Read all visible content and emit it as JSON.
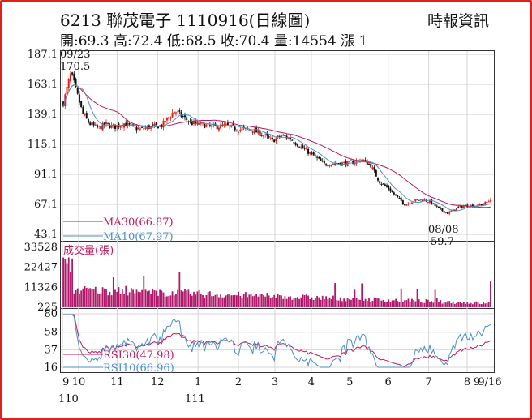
{
  "header": {
    "title": "6213  聯茂電子 1110916(日線圖)",
    "source": "時報資訊",
    "ohlc": "開:69.3 高:72.4 低:68.5 收:70.4 量:14554 漲 1"
  },
  "colors": {
    "up": "#e0201b",
    "down": "#111111",
    "ma30": "#c2185b",
    "ma10": "#4a90c2",
    "volume": "#b0186a",
    "frame": "#e0201b"
  },
  "chart_data": [
    {
      "type": "candlestick",
      "yticks": [
        "187.1",
        "163.1",
        "139.1",
        "115.1",
        "91.1",
        "67.1",
        "43.1"
      ],
      "ylim": [
        43.1,
        187.1
      ],
      "annotations": [
        {
          "label": "09/23",
          "value": "170.5"
        },
        {
          "label": "08/08",
          "value": "59.7"
        }
      ],
      "legend": [
        {
          "name": "MA30(66.87)",
          "color": "#c2185b"
        },
        {
          "name": "MA10(67.97)",
          "color": "#4a90c2"
        }
      ],
      "series": [
        {
          "name": "MA30",
          "last": 66.87
        },
        {
          "name": "MA10",
          "last": 67.97
        }
      ],
      "months": [
        {
          "label": "9",
          "pos": 0.0
        },
        {
          "label": "10",
          "pos": 0.04
        },
        {
          "label": "11",
          "pos": 0.135
        },
        {
          "label": "12",
          "pos": 0.235
        },
        {
          "label": "1",
          "pos": 0.335
        },
        {
          "label": "2",
          "pos": 0.435
        },
        {
          "label": "3",
          "pos": 0.525
        },
        {
          "label": "4",
          "pos": 0.615
        },
        {
          "label": "5",
          "pos": 0.71
        },
        {
          "label": "6",
          "pos": 0.805
        },
        {
          "label": "7",
          "pos": 0.905
        },
        {
          "label": "8",
          "pos": 1.0
        }
      ],
      "price_anchors": [
        [
          0.0,
          148
        ],
        [
          0.01,
          162
        ],
        [
          0.018,
          172
        ],
        [
          0.03,
          158
        ],
        [
          0.045,
          140
        ],
        [
          0.06,
          132
        ],
        [
          0.08,
          128
        ],
        [
          0.1,
          131
        ],
        [
          0.12,
          129
        ],
        [
          0.14,
          132
        ],
        [
          0.16,
          129
        ],
        [
          0.18,
          127
        ],
        [
          0.2,
          129
        ],
        [
          0.23,
          130
        ],
        [
          0.26,
          142
        ],
        [
          0.28,
          137
        ],
        [
          0.3,
          132
        ],
        [
          0.32,
          131
        ],
        [
          0.35,
          129
        ],
        [
          0.38,
          130
        ],
        [
          0.41,
          127
        ],
        [
          0.44,
          127
        ],
        [
          0.47,
          122
        ],
        [
          0.49,
          118
        ],
        [
          0.51,
          122
        ],
        [
          0.53,
          120
        ],
        [
          0.56,
          112
        ],
        [
          0.59,
          105
        ],
        [
          0.61,
          99
        ],
        [
          0.64,
          100
        ],
        [
          0.67,
          100
        ],
        [
          0.7,
          103
        ],
        [
          0.72,
          98
        ],
        [
          0.74,
          85
        ],
        [
          0.76,
          80
        ],
        [
          0.78,
          73
        ],
        [
          0.8,
          67
        ],
        [
          0.82,
          70
        ],
        [
          0.84,
          71
        ],
        [
          0.86,
          69
        ],
        [
          0.88,
          63
        ],
        [
          0.9,
          60
        ],
        [
          0.92,
          64
        ],
        [
          0.94,
          66
        ],
        [
          0.96,
          66
        ],
        [
          0.98,
          67
        ],
        [
          1.0,
          70.4
        ]
      ]
    },
    {
      "type": "bar",
      "title": "成交量(張)",
      "yticks": [
        "33528",
        "22427",
        "11326",
        "225"
      ],
      "ylim": [
        225,
        33528
      ],
      "last": 14554
    },
    {
      "type": "line",
      "yticks": [
        "80",
        "58",
        "37",
        "16"
      ],
      "ylim": [
        16,
        80
      ],
      "legend": [
        {
          "name": "RSI30(47.98)",
          "color": "#c2185b"
        },
        {
          "name": "RSI10(66.96)",
          "color": "#4a90c2"
        }
      ],
      "series": [
        {
          "name": "RSI30",
          "last": 47.98
        },
        {
          "name": "RSI10",
          "last": 66.96
        }
      ],
      "xticks": [
        "9",
        "10",
        "11",
        "12",
        "1",
        "2",
        "3",
        "4",
        "5",
        "6",
        "7",
        "8",
        "9",
        "9/16"
      ],
      "xsub": [
        "110",
        "111"
      ]
    }
  ]
}
